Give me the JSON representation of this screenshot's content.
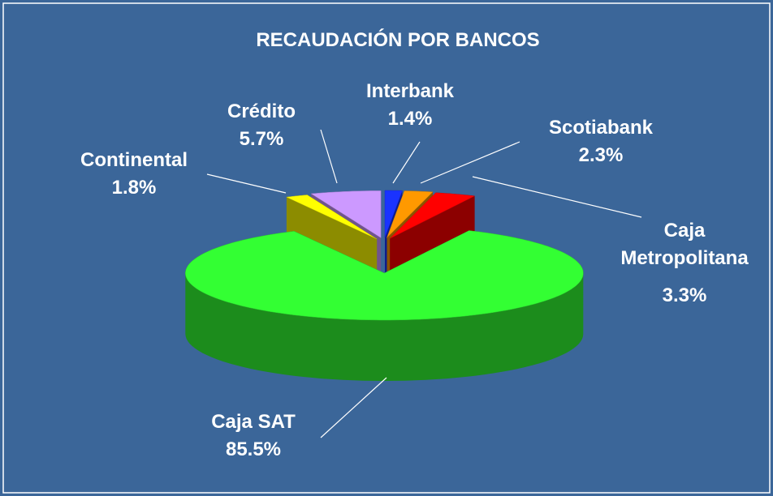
{
  "chart_data": {
    "type": "pie",
    "title": "RECAUDACIÓN POR BANCOS",
    "categories": [
      "Interbank",
      "Scotiabank",
      "Caja Metropolitana",
      "Caja SAT",
      "Continental",
      "Crédito"
    ],
    "values": [
      1.4,
      2.3,
      3.3,
      85.5,
      1.8,
      5.7
    ],
    "value_labels": [
      "1.4%",
      "2.3%",
      "3.3%",
      "85.5%",
      "1.8%",
      "5.7%"
    ],
    "colors": [
      "#1a33ff",
      "#ff9900",
      "#ff0000",
      "#33ff33",
      "#ffff00",
      "#cc99ff"
    ]
  }
}
